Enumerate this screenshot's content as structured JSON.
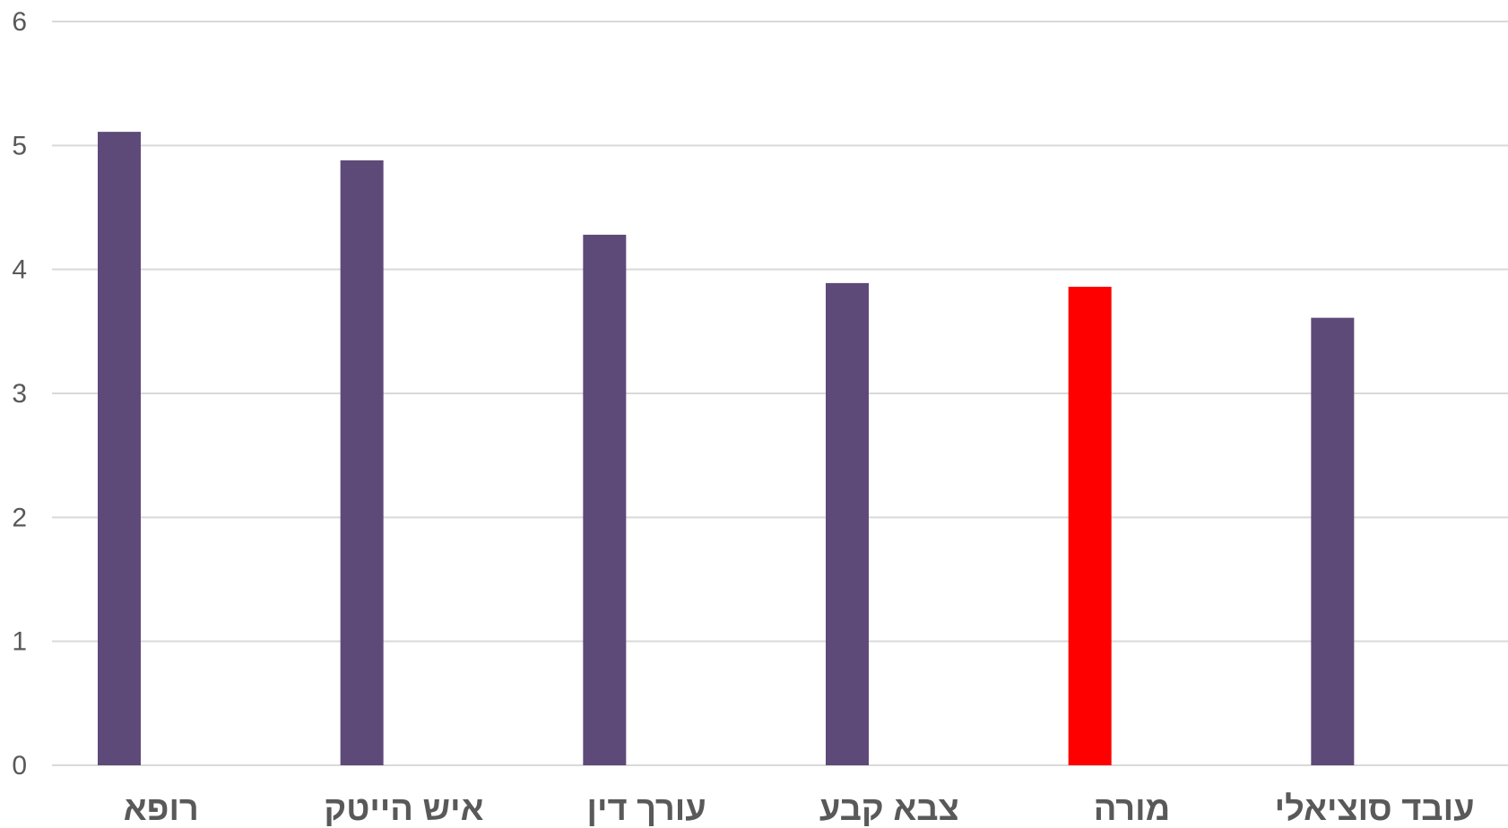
{
  "chart_data": {
    "type": "bar",
    "categories": [
      "רופא",
      "איש הייטק",
      "עורך דין",
      "צבא קבע",
      "מורה",
      "עובד סוציאלי"
    ],
    "values": [
      5.11,
      4.88,
      4.28,
      3.89,
      3.86,
      3.61
    ],
    "title": "",
    "xlabel": "",
    "ylabel": "",
    "ylim": [
      0,
      6
    ],
    "yticks": [
      "0",
      "1",
      "2",
      "3",
      "4",
      "5",
      "6"
    ],
    "grid": true,
    "colors": {
      "default": "#5e4a79",
      "highlight": "#ff0000",
      "gridline": "#d9d9d9",
      "text": "#595959"
    },
    "highlight_category": "מורה"
  }
}
